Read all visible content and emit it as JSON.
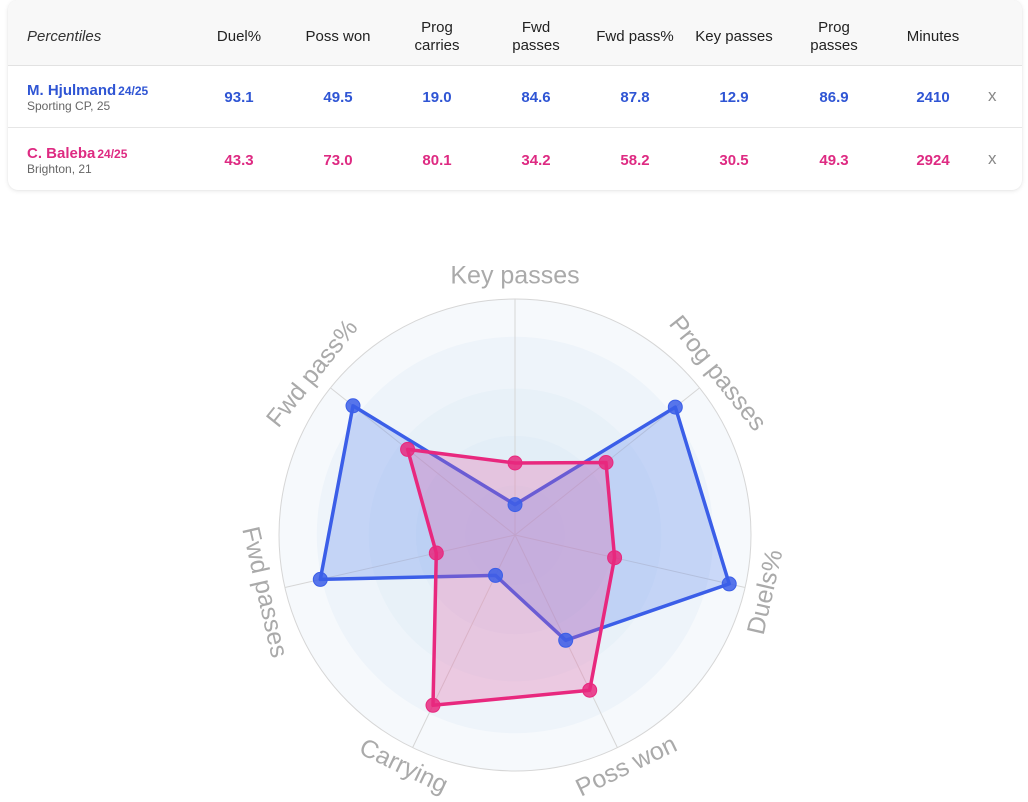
{
  "table": {
    "header_label": "Percentiles",
    "columns": [
      [
        "Duel%"
      ],
      [
        "Poss won"
      ],
      [
        "Prog",
        "carries"
      ],
      [
        "Fwd",
        "passes"
      ],
      [
        "Fwd pass%"
      ],
      [
        "Key passes"
      ],
      [
        "Prog",
        "passes"
      ],
      [
        "Minutes"
      ]
    ],
    "players": [
      {
        "name": "M. Hjulmand",
        "season": "24/25",
        "club": "Sporting CP, 25",
        "color": "#2f55d4",
        "values": [
          "93.1",
          "49.5",
          "19.0",
          "84.6",
          "87.8",
          "12.9",
          "86.9",
          "2410"
        ],
        "remove_label": "x"
      },
      {
        "name": "C. Baleba",
        "season": "24/25",
        "club": "Brighton, 21",
        "color": "#de2a82",
        "values": [
          "43.3",
          "73.0",
          "80.1",
          "34.2",
          "58.2",
          "30.5",
          "49.3",
          "2924"
        ],
        "remove_label": "x"
      }
    ]
  },
  "chart_data": {
    "type": "radar",
    "axes": [
      "Key passes",
      "Prog passes",
      "Duels%",
      "Poss won",
      "Carrying",
      "Fwd passes",
      "Fwd pass%"
    ],
    "range": [
      0,
      100
    ],
    "series": [
      {
        "name": "M. Hjulmand",
        "color": "#3b5ee8",
        "fill": "rgba(100,140,240,0.30)",
        "values": [
          12.9,
          86.9,
          93.1,
          49.5,
          19.0,
          84.6,
          87.8
        ]
      },
      {
        "name": "C. Baleba",
        "color": "#e8287e",
        "fill": "rgba(230,90,160,0.28)",
        "values": [
          30.5,
          49.3,
          43.3,
          73.0,
          80.1,
          34.2,
          58.2
        ]
      }
    ],
    "grid_color": "#d6d6d6",
    "label_color": "#aaaaaa"
  }
}
